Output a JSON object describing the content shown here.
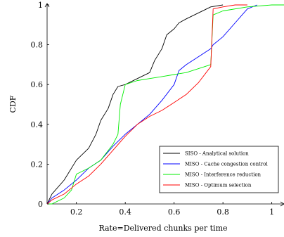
{
  "chart_data": {
    "type": "line",
    "title": "",
    "xlabel": "Rate=Delivered chunks per time",
    "ylabel": "CDF",
    "xlim": [
      0.08,
      1.05
    ],
    "ylim": [
      0,
      1
    ],
    "x_ticks": [
      0.2,
      0.4,
      0.6,
      0.8,
      1
    ],
    "x_tick_labels": [
      "0.2",
      "0.4",
      "0.6",
      "0.8",
      "1"
    ],
    "y_ticks": [
      0,
      0.2,
      0.4,
      0.6,
      0.8,
      1
    ],
    "y_tick_labels": [
      "0",
      "0.2",
      "0.4",
      "0.6",
      "0.8",
      "1"
    ],
    "grid": false,
    "legend_position": "bottom-right",
    "series": [
      {
        "name": "SISO - Analytical solution",
        "color": "#000000",
        "x": [
          0.08,
          0.1,
          0.15,
          0.2,
          0.25,
          0.28,
          0.3,
          0.33,
          0.35,
          0.37,
          0.4,
          0.45,
          0.5,
          0.52,
          0.55,
          0.57,
          0.6,
          0.62,
          0.65,
          0.7,
          0.75,
          0.8
        ],
        "y": [
          0,
          0.05,
          0.12,
          0.22,
          0.28,
          0.35,
          0.42,
          0.48,
          0.55,
          0.59,
          0.6,
          0.63,
          0.66,
          0.72,
          0.78,
          0.85,
          0.88,
          0.91,
          0.93,
          0.96,
          0.99,
          1.0
        ]
      },
      {
        "name": "MISO - Cache congestion control",
        "color": "#0000ff",
        "x": [
          0.08,
          0.1,
          0.15,
          0.2,
          0.25,
          0.3,
          0.35,
          0.4,
          0.45,
          0.5,
          0.55,
          0.6,
          0.62,
          0.65,
          0.7,
          0.75,
          0.76,
          0.8,
          0.85,
          0.9,
          0.94
        ],
        "y": [
          0,
          0.03,
          0.07,
          0.12,
          0.18,
          0.22,
          0.29,
          0.35,
          0.4,
          0.45,
          0.52,
          0.6,
          0.67,
          0.7,
          0.74,
          0.78,
          0.8,
          0.84,
          0.91,
          0.98,
          1.0
        ]
      },
      {
        "name": "MISO - Interference reduction",
        "color": "#00ee00",
        "x": [
          0.08,
          0.1,
          0.15,
          0.18,
          0.2,
          0.25,
          0.3,
          0.35,
          0.37,
          0.38,
          0.4,
          0.45,
          0.5,
          0.55,
          0.6,
          0.65,
          0.7,
          0.75,
          0.76,
          0.8,
          0.9,
          1.0,
          1.05
        ],
        "y": [
          0,
          0.0,
          0.03,
          0.07,
          0.15,
          0.18,
          0.22,
          0.3,
          0.35,
          0.5,
          0.6,
          0.62,
          0.63,
          0.64,
          0.65,
          0.66,
          0.68,
          0.7,
          0.95,
          0.97,
          0.99,
          1.0,
          1.0
        ]
      },
      {
        "name": "MISO - Optimum selection",
        "color": "#ff0000",
        "x": [
          0.08,
          0.1,
          0.15,
          0.2,
          0.25,
          0.3,
          0.35,
          0.4,
          0.45,
          0.5,
          0.55,
          0.6,
          0.65,
          0.7,
          0.75,
          0.76,
          0.8,
          0.85,
          0.9
        ],
        "y": [
          0,
          0.02,
          0.05,
          0.1,
          0.14,
          0.2,
          0.27,
          0.34,
          0.4,
          0.44,
          0.47,
          0.51,
          0.55,
          0.61,
          0.69,
          0.98,
          0.99,
          1.0,
          1.0
        ]
      }
    ]
  }
}
